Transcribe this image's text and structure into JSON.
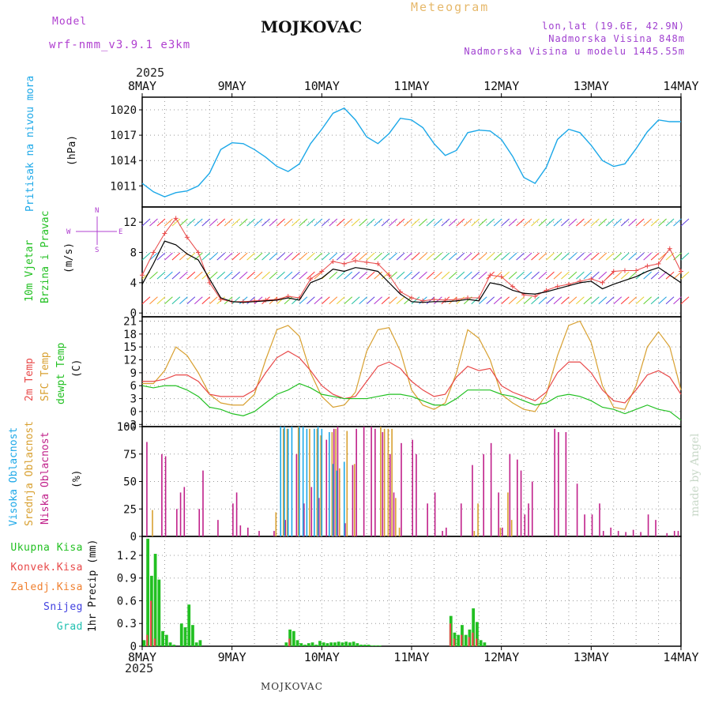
{
  "header": {
    "model_label": "Model",
    "model_name": "wrf-nmm_v3.9.1 e3km",
    "title": "MOJKOVAC",
    "meteogram_label": "Meteogram",
    "lonlat": "lon,lat (19.6E, 42.9N)",
    "elevation": "Nadmorska Visina 848m",
    "model_elevation": "Nadmorska Visina u modelu 1445.55m",
    "year_top": "2025"
  },
  "footer": {
    "station": "MOJKOVAC",
    "year_bottom": "2025",
    "credit": "made by Angel"
  },
  "time_axis": {
    "labels": [
      "8MAY",
      "9MAY",
      "10MAY",
      "11MAY",
      "12MAY",
      "13MAY",
      "14MAY"
    ]
  },
  "colors": {
    "pressure": "#1ca8e8",
    "wind_black": "#000000",
    "wind_gust": "#e84848",
    "temp2m": "#e84848",
    "sfc": "#d8a030",
    "dewpt": "#22c022",
    "high_cloud": "#1ca8e8",
    "mid_cloud": "#d8a030",
    "low_cloud": "#c0208a",
    "precip": "#22c022",
    "conv": "#e84848"
  },
  "panels": {
    "pressure": {
      "label": "Pritisak na nivou mora",
      "unit": "(hPa)"
    },
    "wind": {
      "label1": "10m Vjetar",
      "label2": "Brzina i Pravac",
      "unit": "(m/s)",
      "compass": {
        "n": "N",
        "s": "S",
        "w": "W",
        "e": "E"
      }
    },
    "temp": {
      "label1": "2m Temp",
      "label2": "SFC Temp",
      "label3": "dewpt Temp",
      "unit": "(C)"
    },
    "cloud": {
      "label1": "Visoka Oblacnost",
      "label2": "Srednja Oblacnost",
      "label3": "Niska Oblacnost",
      "unit": "(%)"
    },
    "precip": {
      "legend": [
        "Ukupna Kisa",
        "Konvek.Kisa",
        "Zaledj.Kisa",
        "Snijeg",
        "Grad"
      ],
      "unit": "1hr Precip (mm)"
    }
  },
  "chart_data": [
    {
      "type": "line",
      "title": "Pritisak na nivou mora",
      "ylabel": "(hPa)",
      "ylim": [
        1008.5,
        1021.5
      ],
      "yticks": [
        1011,
        1014,
        1017,
        1020
      ],
      "x_hours": [
        0,
        3,
        6,
        9,
        12,
        15,
        18,
        21,
        24,
        27,
        30,
        33,
        36,
        39,
        42,
        45,
        48,
        51,
        54,
        57,
        60,
        63,
        66,
        69,
        72,
        75,
        78,
        81,
        84,
        87,
        90,
        93,
        96,
        99,
        102,
        105,
        108,
        111,
        114,
        117,
        120,
        123,
        126,
        129,
        132,
        135,
        138,
        141,
        144
      ],
      "series": [
        {
          "name": "pressure",
          "values": [
            1011.3,
            1010.3,
            1009.7,
            1010.2,
            1010.4,
            1011.0,
            1012.5,
            1015.3,
            1016.1,
            1016.0,
            1015.3,
            1014.4,
            1013.3,
            1012.7,
            1013.6,
            1016.0,
            1017.7,
            1019.6,
            1020.2,
            1018.8,
            1016.8,
            1016.0,
            1017.2,
            1019.0,
            1018.8,
            1017.9,
            1016.0,
            1014.6,
            1015.2,
            1017.3,
            1017.6,
            1017.5,
            1016.5,
            1014.5,
            1012.0,
            1011.3,
            1013.2,
            1016.5,
            1017.7,
            1017.3,
            1015.8,
            1014.0,
            1013.3,
            1013.6,
            1015.4,
            1017.4,
            1018.8,
            1018.6,
            1018.6
          ]
        }
      ]
    },
    {
      "type": "line",
      "title": "10m Vjetar Brzina i Pravac",
      "ylabel": "(m/s)",
      "ylim": [
        -0.5,
        14
      ],
      "yticks": [
        0,
        4,
        8,
        12
      ],
      "x_hours": [
        0,
        3,
        6,
        9,
        12,
        15,
        18,
        21,
        24,
        27,
        30,
        33,
        36,
        39,
        42,
        45,
        48,
        51,
        54,
        57,
        60,
        63,
        66,
        69,
        72,
        75,
        78,
        81,
        84,
        87,
        90,
        93,
        96,
        99,
        102,
        105,
        108,
        111,
        114,
        117,
        120,
        123,
        126,
        129,
        132,
        135,
        138,
        141,
        144
      ],
      "series": [
        {
          "name": "speed",
          "values": [
            3.8,
            6.5,
            9.5,
            9.0,
            7.8,
            7.0,
            4.5,
            2.0,
            1.5,
            1.4,
            1.5,
            1.6,
            1.7,
            2.0,
            1.7,
            4.0,
            4.6,
            5.8,
            5.5,
            6.0,
            5.8,
            5.5,
            4.0,
            2.5,
            1.5,
            1.4,
            1.5,
            1.5,
            1.6,
            1.8,
            1.6,
            4.0,
            3.7,
            3.0,
            2.6,
            2.5,
            2.8,
            3.2,
            3.6,
            4.0,
            4.2,
            3.2,
            3.8,
            4.3,
            4.8,
            5.5,
            6.0,
            5.0,
            4.0
          ]
        },
        {
          "name": "gust",
          "values": [
            5.0,
            8.0,
            10.5,
            12.5,
            10.0,
            8.0,
            4.0,
            1.8,
            1.5,
            1.5,
            1.6,
            1.7,
            1.8,
            2.2,
            2.0,
            4.5,
            5.5,
            6.8,
            6.5,
            6.9,
            6.7,
            6.5,
            5.0,
            2.8,
            2.0,
            1.6,
            1.8,
            1.7,
            1.8,
            2.0,
            2.0,
            5.0,
            4.8,
            3.5,
            2.4,
            2.2,
            3.0,
            3.5,
            3.8,
            4.2,
            4.5,
            4.0,
            5.5,
            5.6,
            5.6,
            6.2,
            6.5,
            8.5,
            5.5
          ]
        }
      ]
    },
    {
      "type": "line",
      "title": "2m Temp / SFC Temp / dewpt Temp",
      "ylabel": "(C)",
      "ylim": [
        -3.5,
        22
      ],
      "yticks": [
        -3,
        0,
        3,
        6,
        9,
        12,
        15,
        18,
        21
      ],
      "x_hours": [
        0,
        3,
        6,
        9,
        12,
        15,
        18,
        21,
        24,
        27,
        30,
        33,
        36,
        39,
        42,
        45,
        48,
        51,
        54,
        57,
        60,
        63,
        66,
        69,
        72,
        75,
        78,
        81,
        84,
        87,
        90,
        93,
        96,
        99,
        102,
        105,
        108,
        111,
        114,
        117,
        120,
        123,
        126,
        129,
        132,
        135,
        138,
        141,
        144
      ],
      "series": [
        {
          "name": "2m Temp",
          "values": [
            7.0,
            7.0,
            7.5,
            8.5,
            8.5,
            7.0,
            4.0,
            3.5,
            3.5,
            3.5,
            5.0,
            9.0,
            12.5,
            14.0,
            12.5,
            9.5,
            6.0,
            4.0,
            3.0,
            3.5,
            7.0,
            10.5,
            11.5,
            10.0,
            7.0,
            5.0,
            3.5,
            4.0,
            8.0,
            10.5,
            9.5,
            10.0,
            6.0,
            4.5,
            3.5,
            2.5,
            4.5,
            9.0,
            11.5,
            11.5,
            9.0,
            5.0,
            2.5,
            2.0,
            5.0,
            8.5,
            9.5,
            8.0,
            4.0
          ]
        },
        {
          "name": "SFC Temp",
          "values": [
            6.5,
            6.5,
            9.5,
            15.0,
            13.0,
            9.0,
            4.0,
            2.0,
            1.5,
            1.5,
            4.0,
            12.0,
            19.0,
            20.0,
            17.5,
            9.0,
            3.5,
            1.0,
            1.5,
            4.5,
            14.0,
            19.0,
            19.5,
            14.0,
            5.0,
            1.5,
            0.5,
            2.0,
            9.0,
            19.0,
            17.0,
            12.0,
            4.0,
            2.0,
            0.5,
            0.0,
            4.0,
            13.0,
            20.0,
            21.0,
            16.0,
            6.0,
            1.0,
            0.5,
            6.0,
            15.0,
            18.5,
            15.0,
            5.0
          ]
        },
        {
          "name": "dewpt Temp",
          "values": [
            6.0,
            5.5,
            6.0,
            6.0,
            5.0,
            3.5,
            1.0,
            0.5,
            -0.5,
            -1.0,
            0.0,
            2.0,
            4.0,
            5.0,
            6.5,
            5.5,
            4.0,
            3.5,
            3.0,
            3.0,
            3.0,
            3.5,
            4.0,
            4.0,
            3.5,
            2.5,
            1.5,
            1.5,
            3.0,
            5.0,
            5.0,
            5.0,
            4.0,
            3.5,
            2.5,
            1.5,
            2.0,
            3.5,
            4.0,
            3.5,
            2.5,
            1.0,
            0.5,
            -0.5,
            0.5,
            1.5,
            0.5,
            0.0,
            -2.0
          ]
        }
      ]
    },
    {
      "type": "bar",
      "title": "Visoka / Srednja / Niska Oblacnost",
      "ylabel": "(%)",
      "ylim": [
        0,
        100
      ],
      "yticks": [
        0,
        25,
        50,
        75,
        100
      ],
      "series": [
        {
          "name": "Niska Oblacnost",
          "x_hours": [
            1,
            5,
            6,
            9,
            10,
            11,
            15,
            16,
            20,
            24,
            25,
            26,
            28,
            31,
            35,
            38,
            41,
            43,
            45,
            47,
            49,
            51,
            52,
            54,
            56,
            57,
            59,
            61,
            62,
            64,
            66,
            67,
            69,
            72,
            73,
            76,
            78,
            80,
            81,
            85,
            88,
            91,
            93,
            95,
            96,
            98,
            100,
            101,
            102,
            103,
            104,
            110,
            111,
            113,
            116,
            118,
            120,
            122,
            123,
            125,
            127,
            129,
            131,
            133,
            135,
            137,
            140,
            142,
            143
          ],
          "values": [
            86,
            75,
            73,
            25,
            40,
            45,
            25,
            60,
            15,
            30,
            40,
            10,
            8,
            5,
            5,
            15,
            75,
            30,
            45,
            35,
            88,
            98,
            100,
            12,
            65,
            98,
            100,
            100,
            98,
            95,
            75,
            40,
            85,
            88,
            75,
            30,
            40,
            5,
            8,
            30,
            65,
            75,
            85,
            40,
            8,
            75,
            70,
            60,
            20,
            30,
            50,
            98,
            95,
            95,
            48,
            20,
            20,
            30,
            5,
            8,
            5,
            4,
            6,
            4,
            20,
            15,
            3,
            5,
            5
          ]
        },
        {
          "name": "Srednja Oblacnost",
          "x_hours": [
            3,
            36,
            38,
            39,
            42,
            45,
            47,
            48,
            51,
            52,
            53,
            55,
            57,
            64,
            65,
            66,
            67,
            68,
            69,
            89,
            90,
            96,
            98,
            99
          ],
          "values": [
            24,
            22,
            98,
            98,
            100,
            98,
            98,
            92,
            95,
            98,
            62,
            96,
            66,
            100,
            98,
            98,
            98,
            35,
            8,
            5,
            30,
            8,
            40,
            15
          ]
        },
        {
          "name": "Visoka Oblacnost",
          "x_hours": [
            37,
            38,
            39,
            40,
            42,
            43,
            44,
            46,
            47,
            48,
            50,
            51,
            52,
            54
          ],
          "values": [
            100,
            100,
            98,
            100,
            100,
            100,
            98,
            98,
            100,
            98,
            95,
            66,
            60,
            68
          ]
        }
      ]
    },
    {
      "type": "bar",
      "title": "1hr Precip",
      "ylabel": "1hr Precip (mm)",
      "ylim": [
        0,
        1.45
      ],
      "yticks": [
        0,
        0.3,
        0.6,
        0.9,
        1.2
      ],
      "series": [
        {
          "name": "Ukupna Kisa",
          "x_hours": [
            0,
            1,
            2,
            3,
            4,
            5,
            6,
            7,
            8,
            10,
            11,
            12,
            13,
            14,
            15,
            38,
            39,
            40,
            41,
            42,
            43,
            44,
            45,
            46,
            47,
            48,
            49,
            50,
            51,
            52,
            53,
            54,
            55,
            56,
            57,
            58,
            59,
            60,
            61,
            62,
            63,
            82,
            83,
            84,
            85,
            86,
            87,
            88,
            89,
            90,
            91
          ],
          "values": [
            0.08,
            1.42,
            0.93,
            1.22,
            0.88,
            0.2,
            0.15,
            0.05,
            0.02,
            0.3,
            0.25,
            0.55,
            0.28,
            0.05,
            0.08,
            0.05,
            0.22,
            0.2,
            0.08,
            0.04,
            0.02,
            0.04,
            0.05,
            0.02,
            0.07,
            0.05,
            0.04,
            0.05,
            0.05,
            0.06,
            0.05,
            0.06,
            0.05,
            0.06,
            0.04,
            0.02,
            0.02,
            0.02,
            0.01,
            0.01,
            0.01,
            0.4,
            0.18,
            0.15,
            0.28,
            0.15,
            0.22,
            0.5,
            0.32,
            0.08,
            0.05
          ]
        },
        {
          "name": "Konvek.Kisa",
          "x_hours": [
            1,
            2,
            3,
            39,
            82,
            83,
            85,
            87,
            88,
            89
          ],
          "values": [
            0.15,
            0.6,
            0.1,
            0.1,
            0.3,
            0.1,
            0.15,
            0.12,
            0.18,
            0.1
          ]
        }
      ]
    }
  ]
}
